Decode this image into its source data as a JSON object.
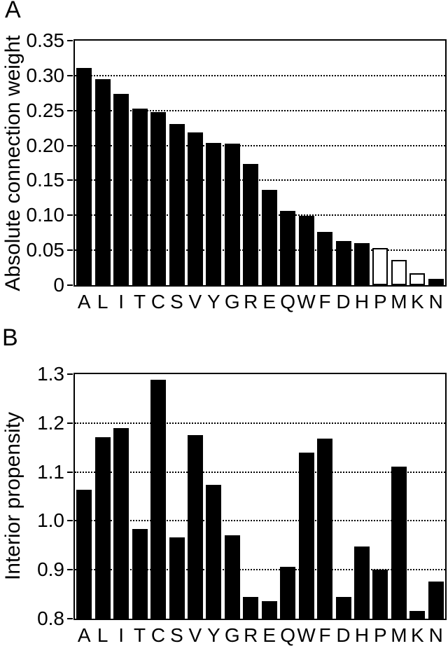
{
  "page": {
    "background": "#ffffff",
    "foreground": "#000000"
  },
  "chart_data": [
    {
      "type": "bar",
      "panel_label": "A",
      "ylabel": "Absolute connection weight",
      "xlabel": "",
      "categories": [
        "A",
        "L",
        "I",
        "T",
        "C",
        "S",
        "V",
        "Y",
        "G",
        "R",
        "E",
        "Q",
        "W",
        "F",
        "D",
        "H",
        "P",
        "M",
        "K",
        "N"
      ],
      "values": [
        0.311,
        0.295,
        0.274,
        0.253,
        0.248,
        0.231,
        0.219,
        0.204,
        0.203,
        0.174,
        0.136,
        0.106,
        0.099,
        0.076,
        0.063,
        0.06,
        0.053,
        0.036,
        0.017,
        0.009
      ],
      "bar_styles": [
        "solid",
        "solid",
        "solid",
        "solid",
        "solid",
        "solid",
        "solid",
        "solid",
        "solid",
        "solid",
        "solid",
        "solid",
        "solid",
        "solid",
        "solid",
        "solid",
        "open",
        "open",
        "open",
        "solid"
      ],
      "ylim": [
        0,
        0.35
      ],
      "yticks": [
        0.35,
        0.3,
        0.25,
        0.2,
        0.15,
        0.1,
        0.05,
        0
      ],
      "ytick_labels": [
        "0.35",
        "0.30",
        "0.25",
        "0.20",
        "0.15",
        "0.10",
        "0.05",
        "0"
      ],
      "gridlines": [
        0.3,
        0.25,
        0.2,
        0.15,
        0.1,
        0.05
      ],
      "grid_style": "dotted",
      "legend": "none",
      "bar_color": "#000000",
      "open_bar_fill": "#ffffff",
      "axis_color": "#000000"
    },
    {
      "type": "bar",
      "panel_label": "B",
      "ylabel": "Interior propensity",
      "xlabel": "",
      "categories": [
        "A",
        "L",
        "I",
        "T",
        "C",
        "S",
        "V",
        "Y",
        "G",
        "R",
        "E",
        "Q",
        "W",
        "F",
        "D",
        "H",
        "P",
        "M",
        "K",
        "N"
      ],
      "values": [
        1.063,
        1.171,
        1.19,
        0.984,
        1.288,
        0.966,
        1.176,
        1.074,
        0.97,
        0.844,
        0.836,
        0.906,
        1.139,
        1.168,
        0.845,
        0.948,
        0.9,
        1.111,
        0.816,
        0.876
      ],
      "bar_styles": [
        "solid",
        "solid",
        "solid",
        "solid",
        "solid",
        "solid",
        "solid",
        "solid",
        "solid",
        "solid",
        "solid",
        "solid",
        "solid",
        "solid",
        "solid",
        "solid",
        "solid",
        "solid",
        "solid",
        "solid"
      ],
      "ylim": [
        0.8,
        1.3
      ],
      "yticks": [
        1.3,
        1.2,
        1.1,
        1.0,
        0.9,
        0.8
      ],
      "ytick_labels": [
        "1.3",
        "1.2",
        "1.1",
        "1.0",
        "0.9",
        "0.8"
      ],
      "gridlines": [
        1.2,
        1.1,
        1.0,
        0.9
      ],
      "grid_style": "dotted",
      "legend": "none",
      "bar_color": "#000000",
      "open_bar_fill": "#ffffff",
      "axis_color": "#000000"
    }
  ]
}
